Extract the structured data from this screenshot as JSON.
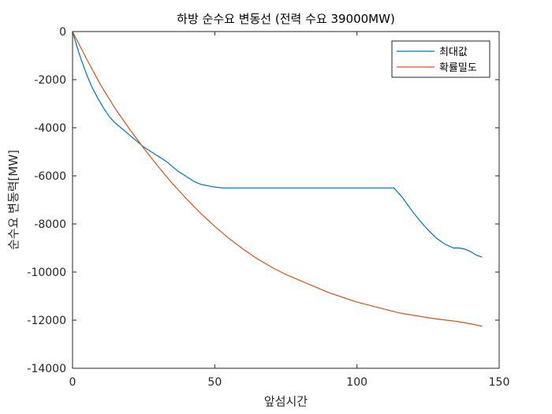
{
  "chart_data": {
    "type": "line",
    "title": "하방 순수요 변동선 (전력 수요 39000MW)",
    "xlabel": "앞섬시간",
    "ylabel": "순수요 변동력[MW]",
    "xlim": [
      0,
      150
    ],
    "ylim": [
      -14000,
      0
    ],
    "xticks": [
      "0",
      "50",
      "100",
      "150"
    ],
    "yticks": [
      "0",
      "-2000",
      "-4000",
      "-6000",
      "-8000",
      "-10000",
      "-12000",
      "-14000"
    ],
    "grid": false,
    "legend_position": "top-right",
    "series": [
      {
        "name": "최대값",
        "color": "#0072BD",
        "x": [
          0,
          1,
          2,
          3,
          5,
          7,
          9,
          11,
          13,
          15,
          17,
          19,
          21,
          23,
          25,
          27,
          29,
          31,
          33,
          35,
          37,
          39,
          41,
          43,
          45,
          47,
          49,
          51,
          53,
          55,
          60,
          70,
          80,
          90,
          100,
          110,
          113,
          116,
          119,
          122,
          125,
          128,
          131,
          134,
          136,
          138,
          140,
          142,
          144
        ],
        "y": [
          0,
          -400,
          -800,
          -1150,
          -1800,
          -2350,
          -2800,
          -3200,
          -3550,
          -3800,
          -4000,
          -4200,
          -4400,
          -4600,
          -4800,
          -4950,
          -5100,
          -5250,
          -5400,
          -5600,
          -5800,
          -5950,
          -6100,
          -6250,
          -6350,
          -6400,
          -6450,
          -6480,
          -6500,
          -6500,
          -6500,
          -6500,
          -6500,
          -6500,
          -6500,
          -6500,
          -6500,
          -6900,
          -7400,
          -7850,
          -8250,
          -8600,
          -8850,
          -9000,
          -9000,
          -9050,
          -9150,
          -9300,
          -9380
        ]
      },
      {
        "name": "확률밀도",
        "color": "#D95319",
        "x": [
          0,
          5,
          10,
          15,
          20,
          25,
          30,
          35,
          40,
          45,
          50,
          55,
          60,
          65,
          70,
          75,
          80,
          85,
          90,
          95,
          100,
          105,
          110,
          115,
          120,
          125,
          130,
          135,
          140,
          144
        ],
        "y": [
          0,
          -1150,
          -2250,
          -3200,
          -4050,
          -4850,
          -5600,
          -6300,
          -6950,
          -7550,
          -8100,
          -8600,
          -9050,
          -9450,
          -9800,
          -10100,
          -10350,
          -10600,
          -10850,
          -11050,
          -11250,
          -11400,
          -11550,
          -11700,
          -11800,
          -11900,
          -11980,
          -12050,
          -12150,
          -12250
        ]
      }
    ]
  }
}
